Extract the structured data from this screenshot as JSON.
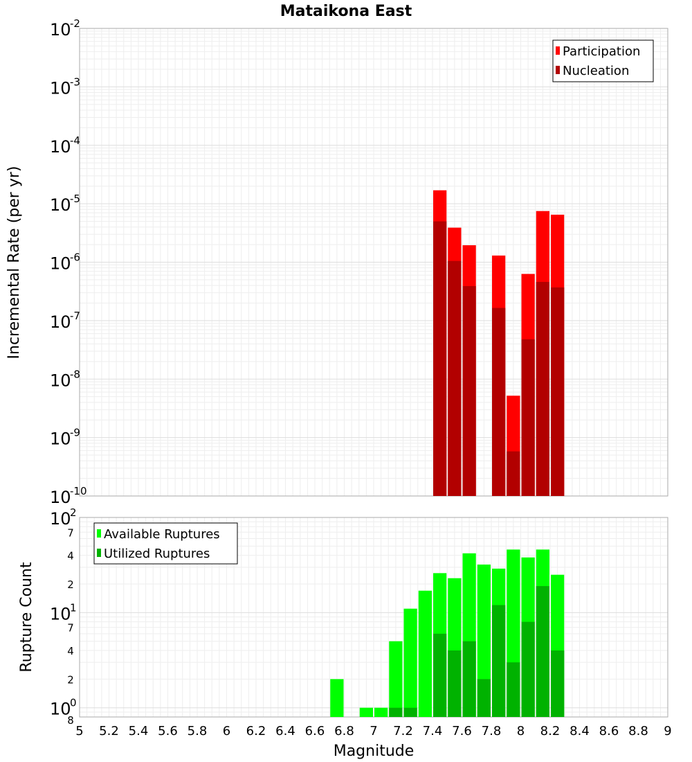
{
  "chart_data": [
    {
      "type": "bar",
      "title": "Mataikona East",
      "xlabel": "Magnitude",
      "ylabel": "Incremental Rate (per yr)",
      "yscale": "log",
      "ylim": [
        1e-10,
        0.01
      ],
      "xlim": [
        5,
        9
      ],
      "legend_position": "top-right",
      "bar_width": 0.1,
      "overlay": true,
      "series": [
        {
          "name": "Participation",
          "color": "#ff0000",
          "x": [
            7.45,
            7.55,
            7.65,
            7.85,
            7.95,
            8.05,
            8.15,
            8.25
          ],
          "values": [
            1.7e-05,
            3.9e-06,
            1.95e-06,
            1.3e-06,
            5.2e-09,
            6.3e-07,
            7.5e-06,
            6.5e-06
          ]
        },
        {
          "name": "Nucleation",
          "color": "#b20000",
          "x": [
            7.45,
            7.55,
            7.65,
            7.85,
            7.95,
            8.05,
            8.15,
            8.25
          ],
          "values": [
            5e-06,
            1.05e-06,
            3.9e-07,
            1.65e-07,
            5.8e-10,
            4.8e-08,
            4.6e-07,
            3.7e-07
          ]
        }
      ]
    },
    {
      "type": "bar",
      "xlabel": "Magnitude",
      "ylabel": "Rupture Count",
      "yscale": "log",
      "ylim": [
        0.8,
        100
      ],
      "xlim": [
        5,
        9
      ],
      "legend_position": "top-left",
      "bar_width": 0.1,
      "overlay": true,
      "series": [
        {
          "name": "Available Ruptures",
          "color": "#00ff00",
          "x": [
            6.75,
            6.95,
            7.05,
            7.15,
            7.25,
            7.35,
            7.45,
            7.55,
            7.65,
            7.75,
            7.85,
            7.95,
            8.05,
            8.15,
            8.25
          ],
          "values": [
            2,
            1,
            1,
            5,
            11,
            17,
            26,
            23,
            42,
            32,
            29,
            46,
            38,
            46,
            25
          ]
        },
        {
          "name": "Utilized Ruptures",
          "color": "#00b200",
          "x": [
            7.15,
            7.25,
            7.45,
            7.55,
            7.65,
            7.75,
            7.85,
            7.95,
            8.05,
            8.15,
            8.25
          ],
          "values": [
            1,
            1,
            6,
            4,
            5,
            2,
            12,
            3,
            8,
            19,
            4
          ]
        }
      ]
    }
  ],
  "x_ticks": [
    "5",
    "5.2",
    "5.4",
    "5.6",
    "5.8",
    "6",
    "6.2",
    "6.4",
    "6.6",
    "6.8",
    "7",
    "7.2",
    "7.4",
    "7.6",
    "7.8",
    "8",
    "8.2",
    "8.4",
    "8.6",
    "8.8",
    "9"
  ],
  "top_y_ticks": [
    {
      "value": 0.01,
      "base": "10",
      "exp": "-2"
    },
    {
      "value": 0.001,
      "base": "10",
      "exp": "-3"
    },
    {
      "value": 0.0001,
      "base": "10",
      "exp": "-4"
    },
    {
      "value": 1e-05,
      "base": "10",
      "exp": "-5"
    },
    {
      "value": 1e-06,
      "base": "10",
      "exp": "-6"
    },
    {
      "value": 1e-07,
      "base": "10",
      "exp": "-7"
    },
    {
      "value": 1e-08,
      "base": "10",
      "exp": "-8"
    },
    {
      "value": 1e-09,
      "base": "10",
      "exp": "-9"
    },
    {
      "value": 1e-10,
      "base": "10",
      "exp": "-10"
    }
  ],
  "bottom_y_major_ticks": [
    {
      "value": 100,
      "base": "10",
      "exp": "2"
    },
    {
      "value": 10,
      "base": "10",
      "exp": "1"
    },
    {
      "value": 1,
      "base": "10",
      "exp": "0"
    }
  ],
  "bottom_y_minor_ticks": [
    {
      "value": 70,
      "label": "7"
    },
    {
      "value": 40,
      "label": "4"
    },
    {
      "value": 20,
      "label": "2"
    },
    {
      "value": 7,
      "label": "7"
    },
    {
      "value": 4,
      "label": "4"
    },
    {
      "value": 2,
      "label": "2"
    },
    {
      "value": 0.8,
      "label": "8"
    }
  ]
}
